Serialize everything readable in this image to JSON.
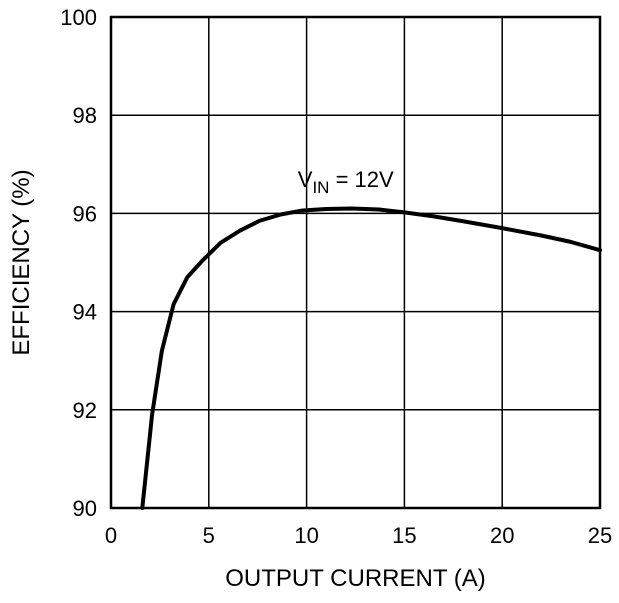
{
  "chart_data": {
    "type": "line",
    "xlabel": "OUTPUT CURRENT (A)",
    "ylabel": "EFFICIENCY (%)",
    "xlim": [
      0,
      25
    ],
    "ylim": [
      90,
      100
    ],
    "x_ticks": [
      "0",
      "5",
      "10",
      "15",
      "20",
      "25"
    ],
    "y_ticks": [
      "90",
      "92",
      "94",
      "96",
      "98",
      "100"
    ],
    "grid": true,
    "annotation": {
      "main": "V",
      "subscript": "IN",
      "rest": " = 12V",
      "x": 12,
      "y": 96.7
    },
    "series": [
      {
        "x": [
          1.6,
          2.1,
          2.6,
          3.2,
          3.9,
          4.7,
          5.6,
          6.6,
          7.6,
          8.7,
          9.8,
          11.0,
          12.3,
          13.7,
          15.0,
          16.5,
          18.0,
          20.0,
          22.0,
          23.5,
          25.0
        ],
        "y": [
          90.0,
          91.9,
          93.2,
          94.15,
          94.7,
          95.05,
          95.4,
          95.65,
          95.85,
          95.98,
          96.06,
          96.09,
          96.1,
          96.08,
          96.02,
          95.94,
          95.84,
          95.7,
          95.55,
          95.42,
          95.25
        ]
      }
    ]
  }
}
